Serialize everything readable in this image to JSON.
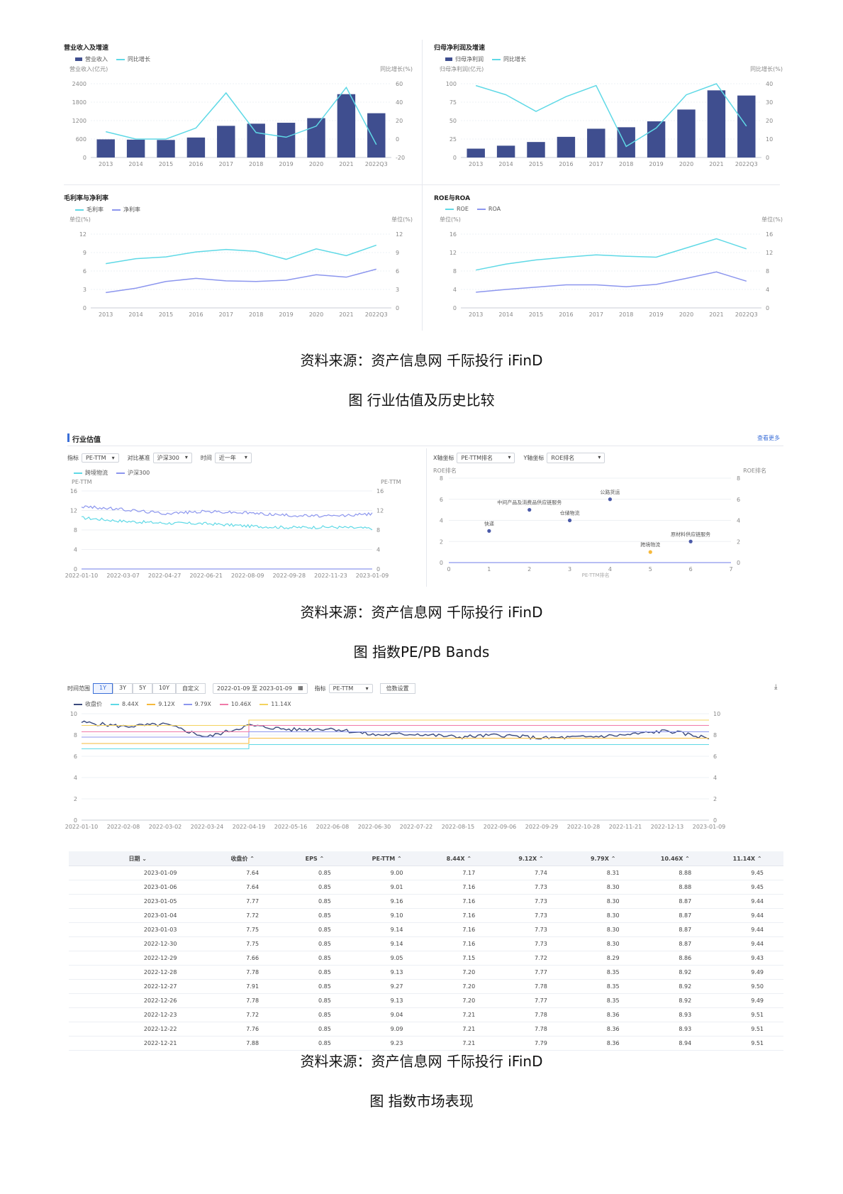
{
  "colors": {
    "bar": "#3f4e8f",
    "cyan": "#5fd9e6",
    "purple": "#8c96ee",
    "orange": "#f6b93b",
    "pink": "#f07aa8",
    "yellow": "#f4d35e",
    "close": "#3b4a7d",
    "grid": "#eef0f4",
    "axis": "#c9ccd6"
  },
  "charts": {
    "revenue": {
      "title": "营业收入及增速",
      "legend": [
        "营业收入",
        "同比增长"
      ],
      "ylabel_left": "营业收入(亿元)",
      "ylabel_right": "同比增长(%)",
      "left_ticks": [
        "0",
        "600",
        "1200",
        "1800",
        "2400"
      ],
      "right_ticks": [
        "-20",
        "0",
        "20",
        "40",
        "60"
      ],
      "categories": [
        "2013",
        "2014",
        "2015",
        "2016",
        "2017",
        "2018",
        "2019",
        "2020",
        "2021",
        "2022Q3"
      ]
    },
    "profit": {
      "title": "归母净利润及增速",
      "legend": [
        "归母净利润",
        "同比增长"
      ],
      "ylabel_left": "归母净利润(亿元)",
      "ylabel_right": "同比增长(%)",
      "left_ticks": [
        "0",
        "25",
        "50",
        "75",
        "100"
      ],
      "right_ticks": [
        "0",
        "10",
        "20",
        "30",
        "40"
      ],
      "categories": [
        "2013",
        "2014",
        "2015",
        "2016",
        "2017",
        "2018",
        "2019",
        "2020",
        "2021",
        "2022Q3"
      ]
    },
    "margin": {
      "title": "毛利率与净利率",
      "legend": [
        "毛利率",
        "净利率"
      ],
      "ylabel_left": "单位(%)",
      "ylabel_right": "单位(%)",
      "left_ticks": [
        "0",
        "3",
        "6",
        "9",
        "12"
      ],
      "right_ticks": [
        "0",
        "3",
        "6",
        "9",
        "12"
      ],
      "categories": [
        "2013",
        "2014",
        "2015",
        "2016",
        "2017",
        "2018",
        "2019",
        "2020",
        "2021",
        "2022Q3"
      ]
    },
    "roe": {
      "title": "ROE与ROA",
      "legend": [
        "ROE",
        "ROA"
      ],
      "ylabel_left": "单位(%)",
      "ylabel_right": "单位(%)",
      "left_ticks": [
        "0",
        "4",
        "8",
        "12",
        "16"
      ],
      "right_ticks": [
        "0",
        "4",
        "8",
        "12",
        "16"
      ],
      "categories": [
        "2013",
        "2014",
        "2015",
        "2016",
        "2017",
        "2018",
        "2019",
        "2020",
        "2021",
        "2022Q3"
      ]
    },
    "valuation": {
      "section_title": "行业估值",
      "more_link": "查看更多",
      "indicator_label": "指标",
      "indicator_value": "PE-TTM",
      "bench_label": "对比基准",
      "bench_value": "沪深300",
      "time_label": "时间",
      "time_value": "近一年",
      "legend": [
        "跨境物流",
        "沪深300"
      ],
      "ylabel_left": "PE-TTM",
      "ylabel_right": "PE-TTM",
      "ticks": [
        "0",
        "4",
        "8",
        "12",
        "16"
      ],
      "dates": [
        "2022-01-10",
        "2022-03-07",
        "2022-04-27",
        "2022-06-21",
        "2022-08-09",
        "2022-09-28",
        "2022-11-23",
        "2023-01-09"
      ]
    },
    "scatter": {
      "x_label": "X轴坐标",
      "x_value": "PE-TTM排名",
      "y_label": "Y轴坐标",
      "y_value": "ROE排名",
      "ylabel_left": "ROE排名",
      "ylabel_right": "ROE排名",
      "y_ticks": [
        "0",
        "2",
        "4",
        "6",
        "8"
      ],
      "x_ticks": [
        "0",
        "1",
        "2",
        "3",
        "4",
        "5",
        "6",
        "7"
      ],
      "x_extra": "PE-TTM排名"
    },
    "bands": {
      "range_label": "时间范围",
      "range_buttons": [
        "1Y",
        "3Y",
        "5Y",
        "10Y",
        "自定义"
      ],
      "date_range": "2022-01-09 至 2023-01-09",
      "indicator_label": "指标",
      "indicator_value": "PE-TTM",
      "params_button": "倍数设置",
      "legend": [
        "收盘价",
        "8.44X",
        "9.12X",
        "9.79X",
        "10.46X",
        "11.14X"
      ],
      "ticks": [
        "0",
        "2",
        "4",
        "6",
        "8",
        "10"
      ],
      "dates": [
        "2022-01-10",
        "2022-02-08",
        "2022-03-02",
        "2022-03-24",
        "2022-04-19",
        "2022-05-16",
        "2022-06-08",
        "2022-06-30",
        "2022-07-22",
        "2022-08-15",
        "2022-09-06",
        "2022-09-29",
        "2022-10-28",
        "2022-11-21",
        "2022-12-13",
        "2023-01-09"
      ]
    }
  },
  "chart_data": [
    {
      "type": "bar",
      "title": "营业收入及增速",
      "categories": [
        "2013",
        "2014",
        "2015",
        "2016",
        "2017",
        "2018",
        "2019",
        "2020",
        "2021",
        "2022Q3"
      ],
      "series": [
        {
          "name": "营业收入",
          "axis": "left",
          "values": [
            590,
            580,
            570,
            650,
            1030,
            1100,
            1130,
            1280,
            2060,
            1440
          ]
        },
        {
          "name": "同比增长",
          "axis": "right",
          "type": "line",
          "values": [
            8,
            0,
            0,
            12,
            50,
            7,
            2,
            14,
            56,
            -6
          ]
        }
      ],
      "ylim_left": [
        0,
        2400
      ],
      "ylim_right": [
        -20,
        60
      ]
    },
    {
      "type": "bar",
      "title": "归母净利润及增速",
      "categories": [
        "2013",
        "2014",
        "2015",
        "2016",
        "2017",
        "2018",
        "2019",
        "2020",
        "2021",
        "2022Q3"
      ],
      "series": [
        {
          "name": "归母净利润",
          "axis": "left",
          "values": [
            12,
            16,
            21,
            28,
            39,
            41,
            49,
            65,
            91,
            84
          ]
        },
        {
          "name": "同比增长",
          "axis": "right",
          "type": "line",
          "values": [
            39,
            34,
            25,
            33,
            39,
            6,
            16,
            34,
            40,
            17
          ]
        }
      ],
      "ylim_left": [
        0,
        100
      ],
      "ylim_right": [
        0,
        40
      ]
    },
    {
      "type": "line",
      "title": "毛利率与净利率",
      "categories": [
        "2013",
        "2014",
        "2015",
        "2016",
        "2017",
        "2018",
        "2019",
        "2020",
        "2021",
        "2022Q3"
      ],
      "series": [
        {
          "name": "毛利率",
          "values": [
            7.2,
            8.0,
            8.3,
            9.1,
            9.5,
            9.2,
            7.9,
            9.6,
            8.5,
            10.2
          ]
        },
        {
          "name": "净利率",
          "values": [
            2.5,
            3.2,
            4.3,
            4.8,
            4.4,
            4.3,
            4.5,
            5.4,
            5.0,
            6.3
          ]
        }
      ],
      "ylim": [
        0,
        12
      ]
    },
    {
      "type": "line",
      "title": "ROE与ROA",
      "categories": [
        "2013",
        "2014",
        "2015",
        "2016",
        "2017",
        "2018",
        "2019",
        "2020",
        "2021",
        "2022Q3"
      ],
      "series": [
        {
          "name": "ROE",
          "values": [
            8.2,
            9.5,
            10.4,
            11.0,
            11.5,
            11.2,
            11.0,
            13.0,
            15.0,
            12.8
          ]
        },
        {
          "name": "ROA",
          "values": [
            3.4,
            4.0,
            4.5,
            5.0,
            5.0,
            4.6,
            5.1,
            6.4,
            7.8,
            5.8
          ]
        }
      ],
      "ylim": [
        0,
        16
      ]
    },
    {
      "type": "line",
      "title": "行业估值",
      "x": [
        "2022-01-10",
        "2022-03-07",
        "2022-04-27",
        "2022-06-21",
        "2022-08-09",
        "2022-09-28",
        "2022-11-23",
        "2023-01-09"
      ],
      "series": [
        {
          "name": "跨境物流",
          "values": [
            10.5,
            9.8,
            9.4,
            9.3,
            8.8,
            8.5,
            8.6,
            8.3
          ]
        },
        {
          "name": "沪深300",
          "values": [
            12.8,
            12.2,
            11.4,
            11.8,
            11.5,
            11.0,
            10.8,
            11.3
          ]
        }
      ],
      "ylim": [
        0,
        16
      ]
    },
    {
      "type": "scatter",
      "title": "PE-TTM排名 vs ROE排名",
      "points": [
        {
          "label": "快递",
          "x": 1,
          "y": 3,
          "highlight": false
        },
        {
          "label": "中间产品及消费品供应链服务",
          "x": 2,
          "y": 5,
          "highlight": false
        },
        {
          "label": "仓储物流",
          "x": 3,
          "y": 4,
          "highlight": false
        },
        {
          "label": "公路货运",
          "x": 4,
          "y": 6,
          "highlight": false
        },
        {
          "label": "跨境物流",
          "x": 5,
          "y": 1,
          "highlight": true
        },
        {
          "label": "原材料供应链服务",
          "x": 6,
          "y": 2,
          "highlight": false
        }
      ],
      "xlim": [
        0,
        7
      ],
      "ylim": [
        0,
        8
      ]
    },
    {
      "type": "line",
      "title": "指数PE/PB Bands",
      "x": [
        "2022-01-10",
        "2022-02-08",
        "2022-03-02",
        "2022-03-24",
        "2022-04-19",
        "2022-05-16",
        "2022-06-08",
        "2022-06-30",
        "2022-07-22",
        "2022-08-15",
        "2022-09-06",
        "2022-09-29",
        "2022-10-28",
        "2022-11-21",
        "2022-12-13",
        "2023-01-09"
      ],
      "series": [
        {
          "name": "收盘价",
          "values": [
            9.2,
            8.8,
            9.0,
            7.8,
            8.9,
            8.5,
            8.6,
            8.0,
            8.1,
            7.8,
            8.0,
            7.7,
            7.8,
            8.0,
            8.4,
            7.7
          ]
        },
        {
          "name": "8.44X",
          "values": [
            6.7,
            6.7,
            6.7,
            6.7,
            7.1,
            7.1,
            7.1,
            7.1,
            7.1,
            7.1,
            7.1,
            7.1,
            7.1,
            7.1,
            7.1,
            7.1
          ]
        },
        {
          "name": "9.12X",
          "values": [
            7.2,
            7.2,
            7.2,
            7.2,
            7.7,
            7.7,
            7.7,
            7.7,
            7.7,
            7.7,
            7.7,
            7.7,
            7.7,
            7.7,
            7.7,
            7.7
          ]
        },
        {
          "name": "9.79X",
          "values": [
            7.8,
            7.8,
            7.8,
            7.8,
            8.3,
            8.3,
            8.3,
            8.3,
            8.3,
            8.3,
            8.3,
            8.3,
            8.3,
            8.3,
            8.3,
            8.3
          ]
        },
        {
          "name": "10.46X",
          "values": [
            8.3,
            8.3,
            8.3,
            8.3,
            8.9,
            8.9,
            8.9,
            8.9,
            8.9,
            8.9,
            8.9,
            8.9,
            8.9,
            8.9,
            8.9,
            8.9
          ]
        },
        {
          "name": "11.14X",
          "values": [
            8.9,
            8.9,
            8.9,
            8.9,
            9.4,
            9.4,
            9.4,
            9.4,
            9.4,
            9.4,
            9.4,
            9.4,
            9.4,
            9.4,
            9.4,
            9.4
          ]
        }
      ],
      "ylim": [
        0,
        10
      ]
    }
  ],
  "table": {
    "headers": [
      "日期 ⌄",
      "收盘价 ⌃",
      "EPS ⌃",
      "PE-TTM ⌃",
      "8.44X ⌃",
      "9.12X ⌃",
      "9.79X ⌃",
      "10.46X ⌃",
      "11.14X ⌃"
    ],
    "rows": [
      [
        "2023-01-09",
        "7.64",
        "0.85",
        "9.00",
        "7.17",
        "7.74",
        "8.31",
        "8.88",
        "9.45"
      ],
      [
        "2023-01-06",
        "7.64",
        "0.85",
        "9.01",
        "7.16",
        "7.73",
        "8.30",
        "8.88",
        "9.45"
      ],
      [
        "2023-01-05",
        "7.77",
        "0.85",
        "9.16",
        "7.16",
        "7.73",
        "8.30",
        "8.87",
        "9.44"
      ],
      [
        "2023-01-04",
        "7.72",
        "0.85",
        "9.10",
        "7.16",
        "7.73",
        "8.30",
        "8.87",
        "9.44"
      ],
      [
        "2023-01-03",
        "7.75",
        "0.85",
        "9.14",
        "7.16",
        "7.73",
        "8.30",
        "8.87",
        "9.44"
      ],
      [
        "2022-12-30",
        "7.75",
        "0.85",
        "9.14",
        "7.16",
        "7.73",
        "8.30",
        "8.87",
        "9.44"
      ],
      [
        "2022-12-29",
        "7.66",
        "0.85",
        "9.05",
        "7.15",
        "7.72",
        "8.29",
        "8.86",
        "9.43"
      ],
      [
        "2022-12-28",
        "7.78",
        "0.85",
        "9.13",
        "7.20",
        "7.77",
        "8.35",
        "8.92",
        "9.49"
      ],
      [
        "2022-12-27",
        "7.91",
        "0.85",
        "9.27",
        "7.20",
        "7.78",
        "8.35",
        "8.92",
        "9.50"
      ],
      [
        "2022-12-26",
        "7.78",
        "0.85",
        "9.13",
        "7.20",
        "7.77",
        "8.35",
        "8.92",
        "9.49"
      ],
      [
        "2022-12-23",
        "7.72",
        "0.85",
        "9.04",
        "7.21",
        "7.78",
        "8.36",
        "8.93",
        "9.51"
      ],
      [
        "2022-12-22",
        "7.76",
        "0.85",
        "9.09",
        "7.21",
        "7.78",
        "8.36",
        "8.93",
        "9.51"
      ],
      [
        "2022-12-21",
        "7.88",
        "0.85",
        "9.23",
        "7.21",
        "7.79",
        "8.36",
        "8.94",
        "9.51"
      ]
    ]
  },
  "captions": {
    "source1": "资料来源：资产信息网 千际投行 iFinD",
    "fig1": "图 行业估值及历史比较",
    "source2": "资料来源：资产信息网 千际投行 iFinD",
    "fig2": "图 指数PE/PB Bands",
    "source3": "资料来源：资产信息网 千际投行 iFinD",
    "fig3": "图 指数市场表现"
  }
}
